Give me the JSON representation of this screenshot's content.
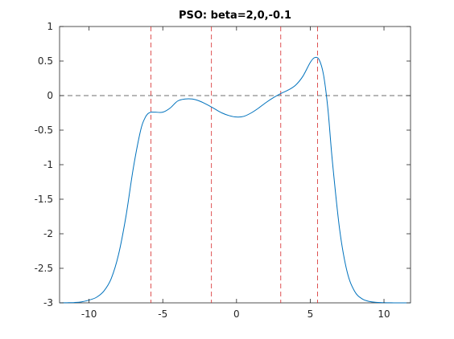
{
  "chart_data": {
    "type": "line",
    "title": "PSO: beta=2,0,-0.1",
    "xlabel": "",
    "ylabel": "",
    "xlim": [
      -12,
      11.8
    ],
    "ylim": [
      -3,
      1
    ],
    "x_ticks": [
      -10,
      -5,
      0,
      5,
      10
    ],
    "x_tick_labels": [
      "-10",
      "-5",
      "0",
      "5",
      "10"
    ],
    "y_ticks": [
      1,
      0.5,
      0,
      -0.5,
      -1,
      -1.5,
      -2,
      -2.5,
      -3
    ],
    "y_tick_labels": [
      "1",
      "0.5",
      "0",
      "-0.5",
      "-1",
      "-1.5",
      "-2",
      "-2.5",
      "-3"
    ],
    "grid": false,
    "series": [
      {
        "color": "#0072bd",
        "x": [
          -12,
          -11.5,
          -11,
          -10.5,
          -10,
          -9.5,
          -9,
          -8.5,
          -8,
          -7.5,
          -7,
          -6.5,
          -6.2,
          -6,
          -5.8,
          -5.5,
          -5,
          -4.5,
          -4,
          -3.5,
          -3,
          -2.5,
          -2,
          -1.5,
          -1,
          -0.5,
          0,
          0.5,
          1,
          1.5,
          2,
          2.5,
          3,
          3.5,
          4,
          4.5,
          5,
          5.3,
          5.6,
          5.9,
          6.2,
          6.5,
          7,
          7.5,
          8,
          8.5,
          9,
          9.5,
          10,
          10.5,
          11,
          11.8
        ],
        "y": [
          -3.0,
          -2.998,
          -2.995,
          -2.985,
          -2.96,
          -2.92,
          -2.83,
          -2.65,
          -2.3,
          -1.75,
          -1.05,
          -0.5,
          -0.32,
          -0.26,
          -0.24,
          -0.24,
          -0.24,
          -0.18,
          -0.08,
          -0.05,
          -0.05,
          -0.08,
          -0.13,
          -0.19,
          -0.25,
          -0.29,
          -0.31,
          -0.3,
          -0.25,
          -0.18,
          -0.1,
          -0.03,
          0.03,
          0.08,
          0.15,
          0.28,
          0.48,
          0.55,
          0.52,
          0.3,
          -0.2,
          -0.95,
          -1.95,
          -2.55,
          -2.83,
          -2.94,
          -2.98,
          -2.993,
          -2.997,
          -2.999,
          -3.0,
          -3.0
        ]
      }
    ],
    "reference_lines": {
      "horizontal": [
        {
          "y": 0,
          "color": "#404040",
          "style": "dashed"
        }
      ],
      "vertical": [
        {
          "x": -5.8,
          "color": "#d62728",
          "style": "dashed"
        },
        {
          "x": -1.7,
          "color": "#d62728",
          "style": "dashed"
        },
        {
          "x": 3.0,
          "color": "#d62728",
          "style": "dashed"
        },
        {
          "x": 5.5,
          "color": "#d62728",
          "style": "dashed"
        }
      ]
    }
  }
}
